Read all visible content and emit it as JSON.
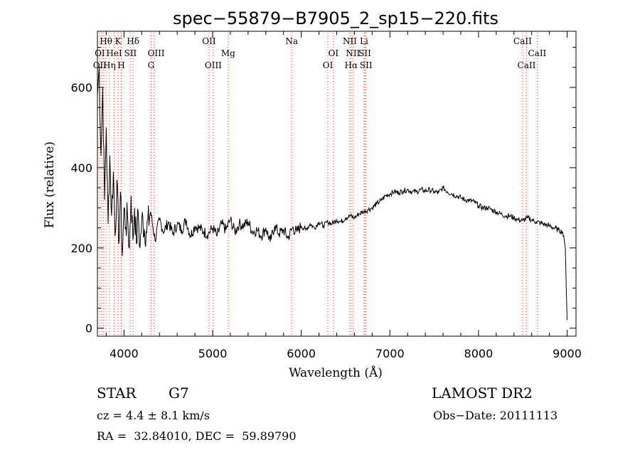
{
  "chart_data": {
    "type": "line",
    "title": "spec−55879−B7905_2_sp15−220.fits",
    "xlabel": "Wavelength (Å)",
    "ylabel": "Flux (relative)",
    "xlim": [
      3700,
      9100
    ],
    "ylim": [
      -20,
      740
    ],
    "x_ticks": [
      4000,
      5000,
      6000,
      7000,
      8000,
      9000
    ],
    "y_ticks": [
      0,
      200,
      400,
      600
    ],
    "grid": false,
    "series": [
      {
        "name": "spectrum",
        "x": [
          3700,
          3720,
          3740,
          3760,
          3780,
          3800,
          3820,
          3840,
          3860,
          3880,
          3900,
          3920,
          3940,
          3960,
          3980,
          4000,
          4020,
          4040,
          4060,
          4080,
          4100,
          4120,
          4140,
          4160,
          4180,
          4200,
          4250,
          4300,
          4350,
          4400,
          4450,
          4500,
          4550,
          4600,
          4650,
          4700,
          4750,
          4800,
          4850,
          4900,
          4950,
          5000,
          5050,
          5100,
          5150,
          5200,
          5250,
          5300,
          5350,
          5400,
          5450,
          5500,
          5550,
          5600,
          5650,
          5700,
          5750,
          5800,
          5850,
          5900,
          5950,
          6000,
          6050,
          6100,
          6150,
          6200,
          6250,
          6300,
          6350,
          6400,
          6450,
          6500,
          6550,
          6600,
          6650,
          6700,
          6750,
          6800,
          6850,
          6900,
          6950,
          7000,
          7050,
          7100,
          7150,
          7200,
          7250,
          7300,
          7350,
          7400,
          7450,
          7500,
          7550,
          7600,
          7650,
          7700,
          7750,
          7800,
          7850,
          7900,
          7950,
          8000,
          8050,
          8100,
          8150,
          8200,
          8250,
          8300,
          8350,
          8400,
          8450,
          8500,
          8550,
          8600,
          8650,
          8700,
          8750,
          8800,
          8850,
          8900,
          8950,
          8980,
          8990,
          9000
        ],
        "values": [
          580,
          650,
          430,
          600,
          320,
          500,
          260,
          430,
          280,
          390,
          230,
          370,
          210,
          340,
          180,
          300,
          250,
          280,
          200,
          330,
          220,
          300,
          210,
          290,
          200,
          270,
          240,
          290,
          220,
          270,
          240,
          265,
          235,
          260,
          245,
          270,
          230,
          255,
          250,
          240,
          235,
          250,
          230,
          260,
          245,
          270,
          240,
          260,
          255,
          265,
          240,
          245,
          230,
          250,
          215,
          255,
          235,
          245,
          225,
          250,
          240,
          255,
          245,
          260,
          250,
          265,
          255,
          265,
          260,
          270,
          265,
          275,
          280,
          275,
          285,
          290,
          295,
          300,
          310,
          318,
          330,
          335,
          340,
          338,
          342,
          345,
          340,
          340,
          345,
          342,
          345,
          340,
          338,
          350,
          340,
          335,
          330,
          325,
          320,
          318,
          315,
          305,
          300,
          300,
          295,
          290,
          285,
          280,
          280,
          275,
          270,
          268,
          275,
          270,
          265,
          262,
          258,
          255,
          250,
          245,
          240,
          200,
          100,
          20
        ]
      }
    ],
    "line_labels": [
      {
        "text": "Hθ",
        "x": 3797,
        "row": 0
      },
      {
        "text": "K",
        "x": 3934,
        "row": 0
      },
      {
        "text": "Hδ",
        "x": 4102,
        "row": 0
      },
      {
        "text": "OII",
        "x": 4959,
        "row": 0
      },
      {
        "text": "Na",
        "x": 5892,
        "row": 0
      },
      {
        "text": "NII",
        "x": 6548,
        "row": 0
      },
      {
        "text": "Li",
        "x": 6708,
        "row": 0
      },
      {
        "text": "CaII",
        "x": 8498,
        "row": 0
      },
      {
        "text": "OI",
        "x": 3727,
        "row": 1
      },
      {
        "text": "HeI",
        "x": 3889,
        "row": 1
      },
      {
        "text": "SII",
        "x": 4072,
        "row": 1
      },
      {
        "text": "OIII",
        "x": 4363,
        "row": 1
      },
      {
        "text": "Mg",
        "x": 5175,
        "row": 1
      },
      {
        "text": "OI",
        "x": 6363,
        "row": 1
      },
      {
        "text": "NII",
        "x": 6583,
        "row": 1
      },
      {
        "text": "SII",
        "x": 6717,
        "row": 1
      },
      {
        "text": "CaII",
        "x": 8662,
        "row": 1
      },
      {
        "text": "OII",
        "x": 3727,
        "row": 2
      },
      {
        "text": "Hη",
        "x": 3835,
        "row": 2
      },
      {
        "text": "H",
        "x": 3969,
        "row": 2
      },
      {
        "text": "G",
        "x": 4305,
        "row": 2
      },
      {
        "text": "OIII",
        "x": 5007,
        "row": 2
      },
      {
        "text": "OI",
        "x": 6300,
        "row": 2
      },
      {
        "text": "Hα",
        "x": 6563,
        "row": 2
      },
      {
        "text": "SII",
        "x": 6731,
        "row": 2
      },
      {
        "text": "CaII",
        "x": 8542,
        "row": 2
      }
    ],
    "line_markers": [
      3727,
      3750,
      3771,
      3797,
      3835,
      3889,
      3934,
      3969,
      4072,
      4102,
      4305,
      4340,
      4959,
      5007,
      5175,
      5892,
      6300,
      6363,
      6548,
      6563,
      6583,
      6708,
      6717,
      6731,
      8498,
      8542,
      8662
    ],
    "marker_color": "#d04040"
  },
  "info": {
    "class": "STAR",
    "subclass": "G7",
    "survey": "LAMOST DR2",
    "cz": "cz = 4.4 ± 8.1 km/s",
    "obs_date": "Obs−Date: 20111113",
    "coords": "RA =  32.84010, DEC =  59.89790"
  }
}
